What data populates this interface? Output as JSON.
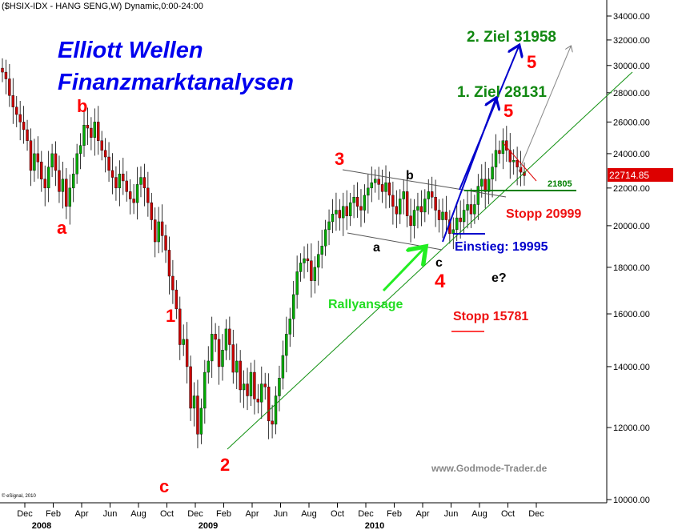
{
  "chart_data": {
    "type": "candlestick",
    "title": "($HSIX-IDX - HANG SENG,W) Dynamic,0:00-24:00",
    "scale": "log",
    "ylim": [
      10000,
      35000
    ],
    "y_ticks": [
      "34000.00",
      "32000.00",
      "30000.00",
      "28000.00",
      "26000.00",
      "24000.00",
      "22000.00",
      "20000.00",
      "18000.00",
      "16000.00",
      "14000.00",
      "12000.00",
      "10000.00"
    ],
    "y_tick_values": [
      34000,
      32000,
      30000,
      28000,
      26000,
      24000,
      22000,
      20000,
      18000,
      16000,
      14000,
      12000,
      10000
    ],
    "x_months": [
      "Dec",
      "Feb",
      "Apr",
      "Jun",
      "Aug",
      "Oct",
      "Dec",
      "Feb",
      "Apr",
      "Jun",
      "Aug",
      "Oct",
      "Dec",
      "Feb",
      "Apr",
      "Jun",
      "Aug",
      "Oct",
      "Dec"
    ],
    "x_years": [
      "2008",
      "2009",
      "2010"
    ],
    "last_price": "22714.85",
    "copyright": "© eSignal, 2010",
    "source": "www.Godmode-Trader.de",
    "heading_line1": "Elliott Wellen",
    "heading_line2": "Finanzmarktanalysen",
    "wave_labels": {
      "a1": "a",
      "b1": "b",
      "c1": "c",
      "w1": "1",
      "w2": "2",
      "w3": "3",
      "w4": "4",
      "a2": "a",
      "b2": "b",
      "c2": "c",
      "w5a": "5",
      "w5b": "5",
      "e": "e?"
    },
    "annotations": {
      "ziel1": "1. Ziel 28131",
      "ziel2": "2. Ziel 31958",
      "stopp1": "Stopp 20999",
      "stopp2": "Stopp 15781",
      "einstieg": "Einstieg: 19995",
      "rally": "Rallyansage",
      "level": "21805"
    },
    "colors": {
      "up": "#00aa00",
      "down": "#cc0000",
      "heading": "#0000ee",
      "green": "#008000",
      "red": "#ff0000",
      "blue": "#0000cc",
      "bright_green": "#22ee22"
    }
  }
}
